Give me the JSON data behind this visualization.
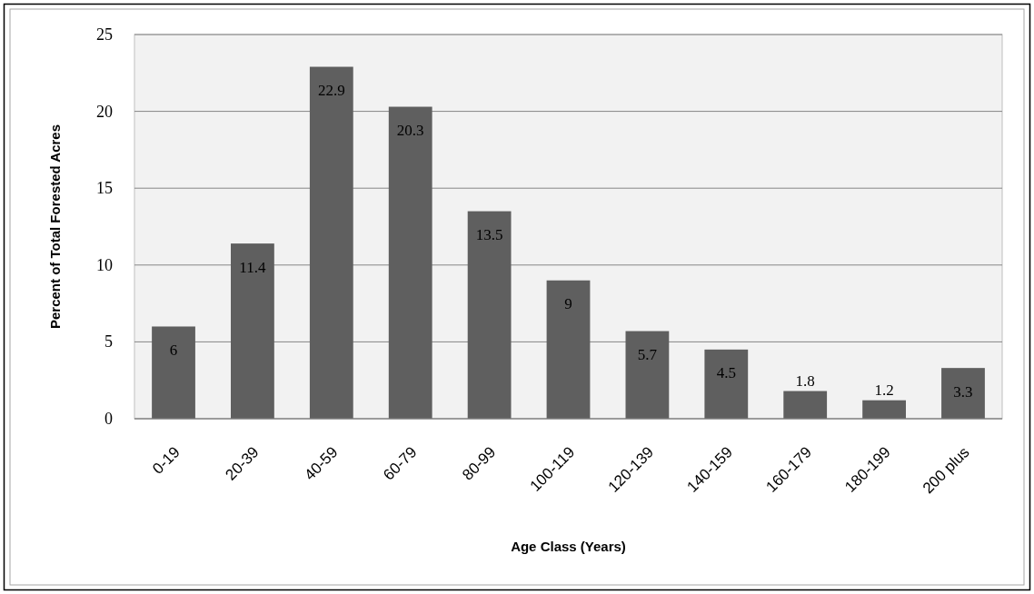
{
  "chart_data": {
    "type": "bar",
    "xlabel": "Age Class (Years)",
    "ylabel": "Percent of Total Forested Acres",
    "categories": [
      "0-19",
      "20-39",
      "40-59",
      "60-79",
      "80-99",
      "100-119",
      "120-139",
      "140-159",
      "160-179",
      "180-199",
      "200 plus"
    ],
    "values": [
      6,
      11.4,
      22.9,
      20.3,
      13.5,
      9,
      5.7,
      4.5,
      1.8,
      1.2,
      3.3
    ],
    "color": "#5f5f5f",
    "ylim": [
      0,
      25
    ],
    "yticks": [
      0,
      5,
      10,
      15,
      20,
      25
    ],
    "grid": "y",
    "data_labels": true
  }
}
